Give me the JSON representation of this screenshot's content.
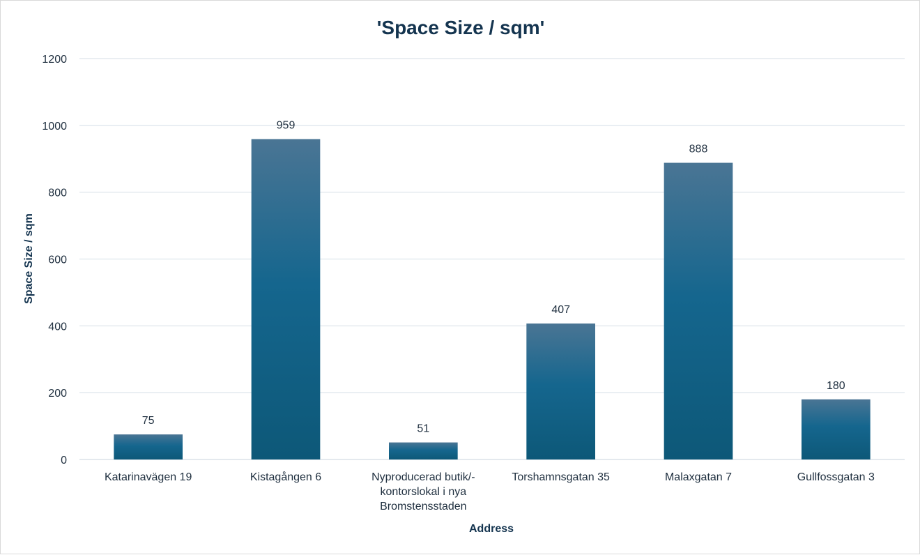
{
  "chart_data": {
    "type": "bar",
    "title": "'Space Size / sqm'",
    "xlabel": "Address",
    "ylabel": "Space Size / sqm",
    "categories": [
      [
        "Katarinavägen 19"
      ],
      [
        "Kistagången 6"
      ],
      [
        "Nyproducerad butik/-",
        "kontorslokal i nya",
        "Bromstensstaden"
      ],
      [
        "Torshamnsgatan 35"
      ],
      [
        "Malaxgatan 7"
      ],
      [
        "Gullfossgatan 3"
      ]
    ],
    "values": [
      75,
      959,
      51,
      407,
      888,
      180
    ],
    "ylim": [
      0,
      1200
    ],
    "yticks": [
      0,
      200,
      400,
      600,
      800,
      1000,
      1200
    ],
    "grid": true,
    "legend": "none",
    "colors": {
      "bar_top": "#4a7594",
      "bar_mid": "#15668e",
      "bar_bottom": "#0d5878",
      "text": "#14344f"
    }
  }
}
